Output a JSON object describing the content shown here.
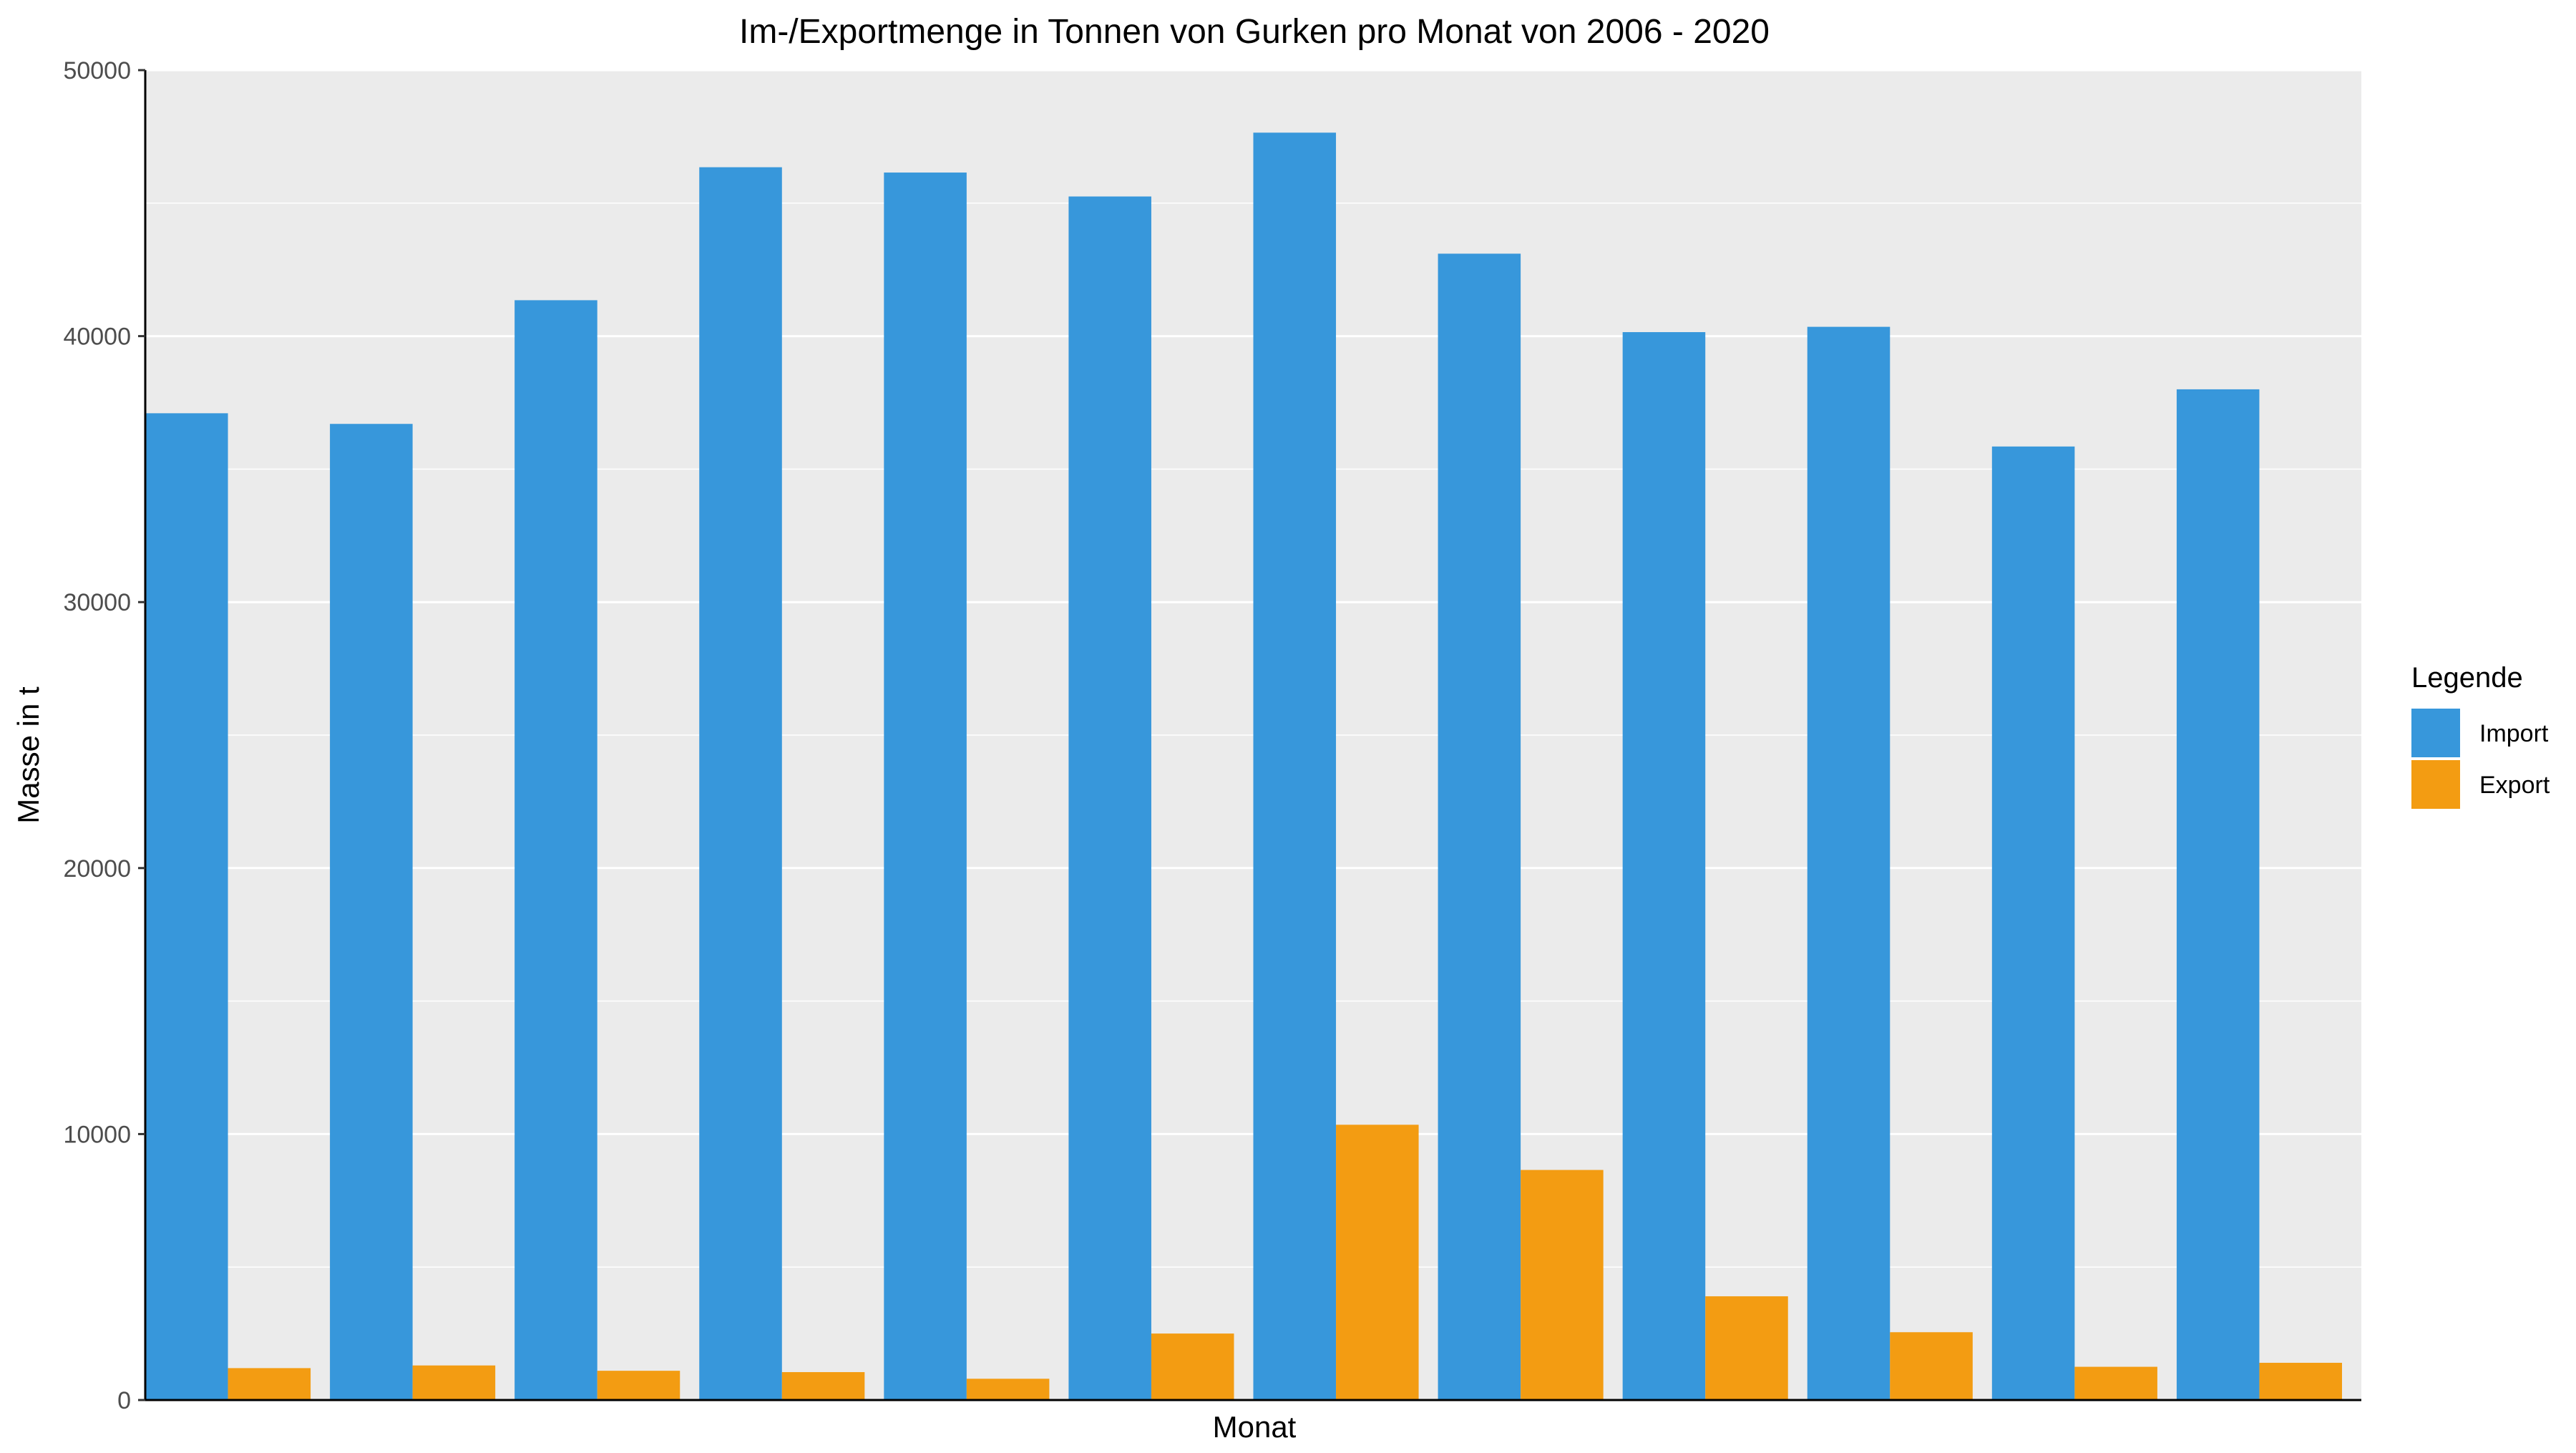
{
  "chart_data": {
    "type": "bar",
    "title": "Im-/Exportmenge in Tonnen von Gurken pro Monat von 2006 - 2020",
    "xlabel": "Monat",
    "ylabel": "Masse in t",
    "categories": [
      "",
      "",
      "",
      "",
      "",
      "",
      "",
      "",
      "",
      "",
      "",
      ""
    ],
    "ylim": [
      0,
      50000
    ],
    "yticks": [
      "0",
      "10000",
      "20000",
      "30000",
      "40000",
      "50000"
    ],
    "grid": true,
    "legend": {
      "title": "Legende",
      "position": "right"
    },
    "series": [
      {
        "name": "Import",
        "color": "#3797db",
        "values": [
          37100,
          36700,
          41350,
          46350,
          46150,
          45250,
          47650,
          43100,
          40150,
          40350,
          35850,
          38000
        ]
      },
      {
        "name": "Export",
        "color": "#f39c12",
        "values": [
          1200,
          1300,
          1100,
          1050,
          800,
          2500,
          10350,
          8650,
          3900,
          2550,
          1250,
          1400
        ]
      }
    ]
  }
}
